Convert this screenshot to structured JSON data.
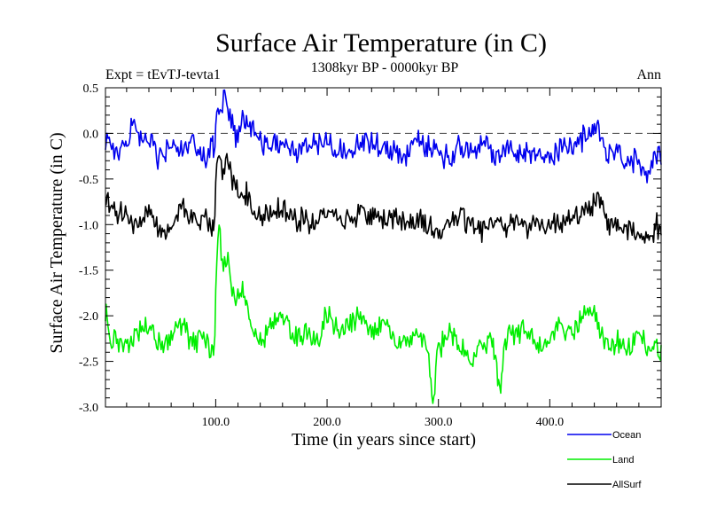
{
  "chart_data": {
    "type": "line",
    "title": "Surface Air Temperature (in C)",
    "subtitle_left": "Expt = tEvTJ-tevta1",
    "subtitle_center": "1308kyr BP - 0000kyr BP",
    "subtitle_right": "Ann",
    "xlabel": "Time (in years since start)",
    "ylabel": "Surface Air Temperature (in C)",
    "xlim": [
      1,
      500
    ],
    "ylim": [
      -3.0,
      0.5
    ],
    "xticks": [
      100,
      200,
      300,
      400
    ],
    "xtick_labels": [
      "100.0",
      "200.0",
      "300.0",
      "400.0"
    ],
    "yticks": [
      0.5,
      0.0,
      -0.5,
      -1.0,
      -1.5,
      -2.0,
      -2.5,
      -3.0
    ],
    "ytick_labels": [
      "0.5",
      "0.0",
      "-0.5",
      "-1.0",
      "-1.5",
      "-2.0",
      "-2.5",
      "-3.0"
    ],
    "reference_line": 0.0,
    "legend_position": "bottom-right, outside plot",
    "series": [
      {
        "name": "Ocean",
        "color": "#0000ee",
        "x": [
          1,
          10,
          20,
          25,
          30,
          40,
          50,
          60,
          70,
          80,
          90,
          98,
          100,
          102,
          105,
          108,
          110,
          115,
          120,
          125,
          130,
          140,
          150,
          160,
          170,
          180,
          190,
          200,
          210,
          220,
          230,
          240,
          250,
          260,
          270,
          280,
          290,
          300,
          310,
          320,
          330,
          340,
          350,
          360,
          370,
          380,
          390,
          400,
          410,
          420,
          430,
          440,
          445,
          450,
          460,
          470,
          480,
          490,
          495,
          500
        ],
        "values": [
          -0.05,
          -0.15,
          -0.2,
          0.2,
          -0.1,
          -0.05,
          -0.3,
          -0.1,
          -0.2,
          -0.15,
          -0.25,
          -0.15,
          0.05,
          0.35,
          0.2,
          0.45,
          0.3,
          0.05,
          -0.1,
          0.2,
          0.1,
          -0.05,
          -0.15,
          -0.1,
          -0.2,
          -0.15,
          -0.1,
          -0.1,
          -0.15,
          -0.2,
          -0.1,
          -0.1,
          -0.15,
          -0.2,
          -0.25,
          -0.1,
          -0.15,
          -0.2,
          -0.25,
          -0.15,
          -0.2,
          -0.1,
          -0.25,
          -0.15,
          -0.2,
          -0.2,
          -0.25,
          -0.25,
          -0.15,
          -0.15,
          -0.05,
          0.05,
          0.05,
          -0.2,
          -0.25,
          -0.3,
          -0.3,
          -0.4,
          -0.2,
          -0.3
        ]
      },
      {
        "name": "Land",
        "color": "#00ee00",
        "x": [
          1,
          10,
          20,
          30,
          40,
          50,
          60,
          70,
          80,
          90,
          98,
          100,
          103,
          106,
          110,
          113,
          118,
          125,
          130,
          140,
          150,
          160,
          170,
          180,
          190,
          200,
          210,
          220,
          230,
          240,
          250,
          260,
          270,
          280,
          290,
          295,
          300,
          310,
          320,
          330,
          340,
          350,
          355,
          360,
          370,
          380,
          390,
          400,
          410,
          420,
          430,
          440,
          450,
          460,
          470,
          480,
          490,
          495,
          500
        ],
        "values": [
          -2.0,
          -2.3,
          -2.3,
          -2.2,
          -2.1,
          -2.3,
          -2.2,
          -2.1,
          -2.3,
          -2.2,
          -2.4,
          -1.8,
          -1.0,
          -1.5,
          -1.3,
          -1.6,
          -1.8,
          -1.7,
          -2.0,
          -2.3,
          -2.1,
          -2.0,
          -2.2,
          -2.2,
          -2.3,
          -2.0,
          -2.2,
          -2.1,
          -2.0,
          -2.2,
          -2.1,
          -2.2,
          -2.3,
          -2.2,
          -2.4,
          -2.9,
          -2.4,
          -2.2,
          -2.3,
          -2.5,
          -2.3,
          -2.4,
          -2.8,
          -2.3,
          -2.2,
          -2.2,
          -2.3,
          -2.2,
          -2.1,
          -2.2,
          -2.0,
          -2.0,
          -2.3,
          -2.3,
          -2.4,
          -2.2,
          -2.4,
          -2.3,
          -2.4
        ]
      },
      {
        "name": "AllSurf",
        "color": "#000000",
        "x": [
          1,
          10,
          20,
          30,
          40,
          50,
          60,
          70,
          80,
          90,
          98,
          100,
          103,
          106,
          110,
          115,
          120,
          125,
          130,
          140,
          150,
          160,
          170,
          180,
          190,
          200,
          210,
          220,
          230,
          240,
          250,
          260,
          270,
          280,
          290,
          300,
          310,
          320,
          330,
          340,
          350,
          360,
          370,
          380,
          390,
          400,
          410,
          420,
          430,
          440,
          445,
          450,
          460,
          470,
          480,
          490,
          495,
          500
        ],
        "values": [
          -0.7,
          -0.9,
          -0.85,
          -1.0,
          -0.85,
          -1.05,
          -0.95,
          -0.85,
          -0.95,
          -0.9,
          -1.0,
          -0.6,
          -0.2,
          -0.45,
          -0.3,
          -0.5,
          -0.65,
          -0.6,
          -0.75,
          -0.9,
          -0.85,
          -0.8,
          -0.95,
          -0.95,
          -1.0,
          -0.85,
          -0.9,
          -0.95,
          -0.85,
          -0.9,
          -0.95,
          -0.9,
          -1.0,
          -0.95,
          -1.0,
          -1.1,
          -0.95,
          -0.95,
          -1.0,
          -1.05,
          -0.95,
          -1.0,
          -0.95,
          -1.0,
          -1.0,
          -1.0,
          -0.95,
          -0.9,
          -0.9,
          -0.75,
          -0.75,
          -0.95,
          -1.0,
          -1.05,
          -1.1,
          -1.15,
          -1.0,
          -1.1
        ]
      }
    ]
  }
}
